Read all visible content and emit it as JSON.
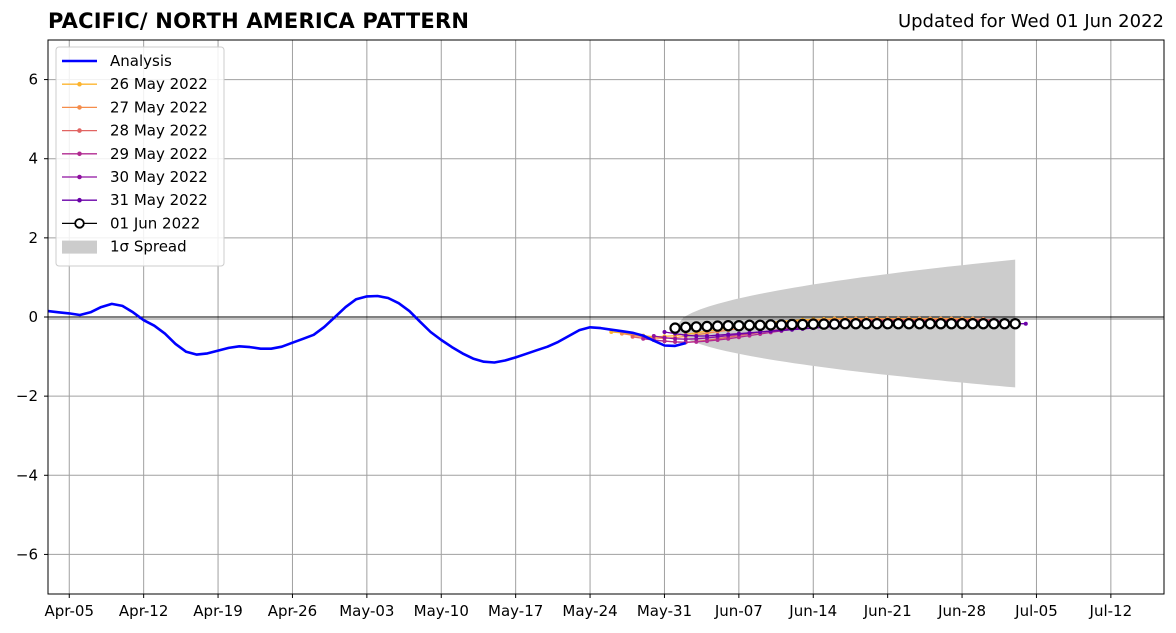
{
  "header": {
    "title": "PACIFIC/ NORTH AMERICA PATTERN",
    "updated": "Updated for Wed 01 Jun 2022"
  },
  "chart_data": {
    "type": "line",
    "title": "PACIFIC/ NORTH AMERICA PATTERN",
    "xlabel": "",
    "ylabel": "",
    "grid": true,
    "legend_position": "upper-left",
    "xlim": [
      "2022-04-03",
      "2022-07-17"
    ],
    "ylim": [
      -7,
      7
    ],
    "x_tick_labels": [
      "Apr-05",
      "Apr-12",
      "Apr-19",
      "Apr-26",
      "May-03",
      "May-10",
      "May-17",
      "May-24",
      "May-31",
      "Jun-07",
      "Jun-14",
      "Jun-21",
      "Jun-28",
      "Jul-05",
      "Jul-12"
    ],
    "x_tick_dates": [
      "2022-04-05",
      "2022-04-12",
      "2022-04-19",
      "2022-04-26",
      "2022-05-03",
      "2022-05-10",
      "2022-05-17",
      "2022-05-24",
      "2022-05-31",
      "2022-06-07",
      "2022-06-14",
      "2022-06-21",
      "2022-06-28",
      "2022-07-05",
      "2022-07-12"
    ],
    "y_ticks": [
      -6,
      -4,
      -2,
      0,
      2,
      4,
      6
    ],
    "y_tick_labels": [
      "−6",
      "−4",
      "−2",
      "0",
      "2",
      "4",
      "6"
    ],
    "zero_line": true,
    "analysis": {
      "name": "Analysis",
      "color": "#0000ff",
      "start": "2022-04-03",
      "values": [
        0.15,
        0.12,
        0.09,
        0.05,
        0.12,
        0.25,
        0.33,
        0.28,
        0.12,
        -0.08,
        -0.22,
        -0.42,
        -0.68,
        -0.88,
        -0.95,
        -0.92,
        -0.85,
        -0.78,
        -0.74,
        -0.76,
        -0.8,
        -0.8,
        -0.75,
        -0.65,
        -0.55,
        -0.45,
        -0.25,
        0.0,
        0.25,
        0.45,
        0.52,
        0.53,
        0.48,
        0.35,
        0.15,
        -0.12,
        -0.38,
        -0.58,
        -0.76,
        -0.92,
        -1.05,
        -1.13,
        -1.15,
        -1.1,
        -1.02,
        -0.93,
        -0.84,
        -0.75,
        -0.63,
        -0.48,
        -0.33,
        -0.26,
        -0.28,
        -0.32,
        -0.36,
        -0.4,
        -0.47,
        -0.6,
        -0.72,
        -0.73,
        -0.66
      ]
    },
    "forecasts": [
      {
        "name": "26 May 2022",
        "color": "#fdb42f",
        "start": "2022-05-26",
        "values": [
          -0.38,
          -0.4,
          -0.44,
          -0.47,
          -0.5,
          -0.49,
          -0.47,
          -0.44,
          -0.4,
          -0.36,
          -0.32,
          -0.28,
          -0.24,
          -0.2,
          -0.17,
          -0.14,
          -0.11,
          -0.09,
          -0.07,
          -0.06,
          -0.05,
          -0.04,
          -0.04,
          -0.04,
          -0.04,
          -0.04,
          -0.04,
          -0.04,
          -0.04,
          -0.04,
          -0.04,
          -0.04,
          -0.04,
          -0.04,
          -0.04
        ]
      },
      {
        "name": "27 May 2022",
        "color": "#f58d4b",
        "start": "2022-05-27",
        "values": [
          -0.42,
          -0.46,
          -0.5,
          -0.53,
          -0.54,
          -0.52,
          -0.49,
          -0.45,
          -0.41,
          -0.37,
          -0.33,
          -0.29,
          -0.25,
          -0.21,
          -0.18,
          -0.15,
          -0.12,
          -0.1,
          -0.08,
          -0.07,
          -0.06,
          -0.05,
          -0.05,
          -0.05,
          -0.05,
          -0.05,
          -0.05,
          -0.05,
          -0.05,
          -0.05,
          -0.05,
          -0.05,
          -0.05,
          -0.05,
          -0.05
        ]
      },
      {
        "name": "28 May 2022",
        "color": "#e16462",
        "start": "2022-05-28",
        "values": [
          -0.5,
          -0.54,
          -0.58,
          -0.61,
          -0.63,
          -0.64,
          -0.62,
          -0.59,
          -0.55,
          -0.51,
          -0.47,
          -0.43,
          -0.39,
          -0.35,
          -0.31,
          -0.27,
          -0.23,
          -0.19,
          -0.16,
          -0.13,
          -0.11,
          -0.09,
          -0.08,
          -0.07,
          -0.07,
          -0.07,
          -0.07,
          -0.07,
          -0.07,
          -0.07,
          -0.07,
          -0.07,
          -0.07,
          -0.07,
          -0.07
        ]
      },
      {
        "name": "29 May 2022",
        "color": "#b12a90",
        "start": "2022-05-29",
        "values": [
          -0.55,
          -0.58,
          -0.61,
          -0.63,
          -0.64,
          -0.63,
          -0.61,
          -0.58,
          -0.55,
          -0.51,
          -0.47,
          -0.43,
          -0.39,
          -0.35,
          -0.31,
          -0.27,
          -0.23,
          -0.19,
          -0.16,
          -0.14,
          -0.12,
          -0.11,
          -0.1,
          -0.1,
          -0.1,
          -0.1,
          -0.1,
          -0.1,
          -0.1,
          -0.1,
          -0.1,
          -0.1,
          -0.1,
          -0.1,
          -0.1
        ]
      },
      {
        "name": "30 May 2022",
        "color": "#8f10a0",
        "start": "2022-05-30",
        "values": [
          -0.48,
          -0.52,
          -0.55,
          -0.56,
          -0.55,
          -0.53,
          -0.5,
          -0.47,
          -0.44,
          -0.41,
          -0.38,
          -0.35,
          -0.32,
          -0.29,
          -0.26,
          -0.23,
          -0.2,
          -0.18,
          -0.16,
          -0.14,
          -0.13,
          -0.12,
          -0.12,
          -0.12,
          -0.12,
          -0.12,
          -0.12,
          -0.12,
          -0.12,
          -0.12,
          -0.12,
          -0.12,
          -0.12,
          -0.12,
          -0.12
        ]
      },
      {
        "name": "31 May 2022",
        "color": "#6a00a8",
        "start": "2022-05-31",
        "values": [
          -0.38,
          -0.42,
          -0.46,
          -0.48,
          -0.48,
          -0.46,
          -0.44,
          -0.42,
          -0.4,
          -0.38,
          -0.36,
          -0.34,
          -0.32,
          -0.3,
          -0.28,
          -0.26,
          -0.24,
          -0.22,
          -0.2,
          -0.19,
          -0.18,
          -0.17,
          -0.17,
          -0.17,
          -0.17,
          -0.17,
          -0.17,
          -0.17,
          -0.17,
          -0.17,
          -0.17,
          -0.17,
          -0.17,
          -0.17,
          -0.17
        ]
      },
      {
        "name": "01 Jun 2022",
        "color": "#000000",
        "start": "2022-06-01",
        "values": [
          -0.28,
          -0.26,
          -0.25,
          -0.24,
          -0.23,
          -0.22,
          -0.22,
          -0.21,
          -0.21,
          -0.2,
          -0.2,
          -0.19,
          -0.19,
          -0.18,
          -0.18,
          -0.18,
          -0.17,
          -0.17,
          -0.17,
          -0.17,
          -0.17,
          -0.17,
          -0.17,
          -0.17,
          -0.17,
          -0.17,
          -0.17,
          -0.17,
          -0.17,
          -0.17,
          -0.17,
          -0.17,
          -0.17
        ]
      }
    ],
    "spread": {
      "name": "1σ Spread",
      "color": "#cccccc",
      "start": "2022-06-01",
      "end": "2022-07-03",
      "upper_end": 1.45,
      "lower_end": -1.78
    }
  }
}
